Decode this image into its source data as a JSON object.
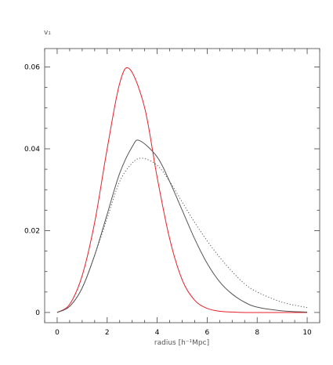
{
  "chart_data": {
    "type": "line",
    "ylabel": "v₁",
    "xlabel": "radius [h⁻¹Mpc]",
    "xlim": [
      -0.5,
      10.5
    ],
    "ylim": [
      -0.0025,
      0.0645
    ],
    "xticks": [
      0,
      2,
      4,
      6,
      8,
      10
    ],
    "xtick_labels": [
      "0",
      "2",
      "4",
      "6",
      "8",
      "10"
    ],
    "yticks": [
      0,
      0.02,
      0.04,
      0.06
    ],
    "ytick_labels": [
      "0",
      "0.02",
      "0.04",
      "0.06"
    ],
    "grid": false,
    "series": [
      {
        "color": "#e8202a",
        "style": "solid",
        "x": [
          0,
          0.5,
          1,
          1.5,
          2,
          2.5,
          2.9,
          3.5,
          4,
          4.5,
          5,
          5.5,
          6,
          6.5,
          7,
          7.5,
          8,
          9,
          10
        ],
        "y": [
          0,
          0.002,
          0.009,
          0.022,
          0.04,
          0.056,
          0.0595,
          0.05,
          0.033,
          0.018,
          0.008,
          0.003,
          0.001,
          0.0003,
          0.0001,
          0,
          0,
          0,
          0
        ]
      },
      {
        "color": "#555555",
        "style": "solid",
        "x": [
          0,
          0.5,
          1,
          1.5,
          2,
          2.5,
          3,
          3.3,
          4,
          4.5,
          5,
          5.5,
          6,
          6.5,
          7,
          7.5,
          8,
          9,
          10
        ],
        "y": [
          0,
          0.0015,
          0.006,
          0.014,
          0.024,
          0.034,
          0.0405,
          0.042,
          0.038,
          0.032,
          0.025,
          0.018,
          0.012,
          0.0075,
          0.0045,
          0.0025,
          0.0013,
          0.0004,
          0.0001
        ]
      },
      {
        "color": "#555555",
        "style": "dotted",
        "x": [
          0,
          0.5,
          1,
          1.5,
          2,
          2.5,
          3,
          3.4,
          4,
          4.5,
          5,
          5.5,
          6,
          6.5,
          7,
          7.5,
          8,
          9,
          10
        ],
        "y": [
          0,
          0.0015,
          0.006,
          0.014,
          0.023,
          0.032,
          0.0365,
          0.0377,
          0.036,
          0.032,
          0.027,
          0.022,
          0.0175,
          0.0135,
          0.01,
          0.007,
          0.005,
          0.0025,
          0.0012
        ]
      }
    ]
  }
}
